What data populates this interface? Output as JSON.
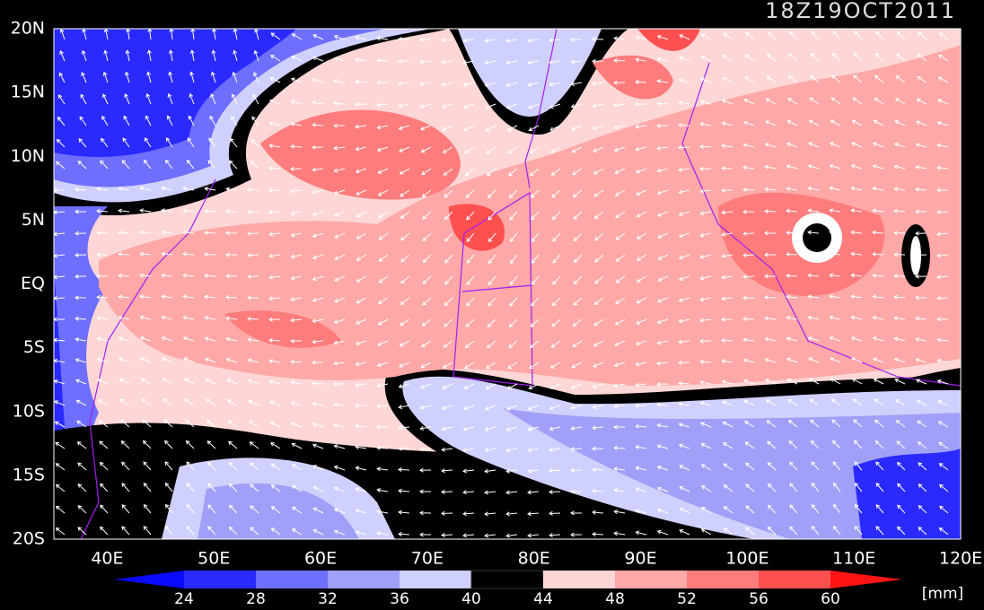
{
  "title": "18Z19OCT2011",
  "lat_labels": [
    "20N",
    "15N",
    "10N",
    "5N",
    "EQ",
    "5S",
    "10S",
    "15S",
    "20S"
  ],
  "lon_labels": [
    "40E",
    "50E",
    "60E",
    "70E",
    "80E",
    "90E",
    "100E",
    "110E",
    "120E"
  ],
  "colorbar": {
    "labels": [
      24,
      28,
      32,
      36,
      40,
      44,
      48,
      52,
      56,
      60
    ],
    "unit": "[mm]"
  }
}
